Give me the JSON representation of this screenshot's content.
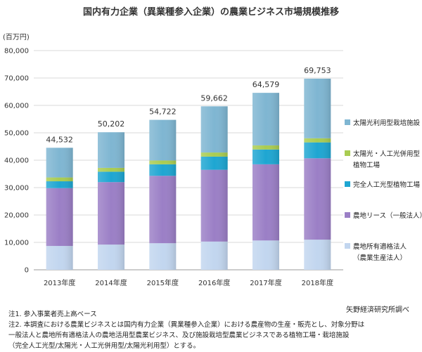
{
  "title": "国内有力企業（異業種参入企業）の農業ビジネス市場規模推移",
  "unit_label": "(百万円)",
  "source": "矢野経済研究所調べ",
  "notes": [
    "注1. 参入事業者売上高ベース",
    "注2. 本調査における農業ビジネスとは国内有力企業（異業種参入企業）における農産物の生産・販売とし、対象分野は",
    "一般法人と農地所有適格法人の農地活用型農業ビジネス、及び施設栽培型農業ビジネスである植物工場・栽培施設",
    "（完全人工光型/太陽光・人工光併用型/太陽光利用型）とする。"
  ],
  "colors": {
    "solar": "#7fb6d2",
    "hybrid": "#a9cc52",
    "artificial": "#1ea6d2",
    "lease": "#9b7fc6",
    "owned": "#c2d6ef"
  },
  "chart_data": {
    "type": "bar",
    "stacked": true,
    "categories": [
      "2013年度",
      "2014年度",
      "2015年度",
      "2016年度",
      "2017年度",
      "2018年度"
    ],
    "ylim": [
      0,
      80000
    ],
    "yticks": [
      0,
      10000,
      20000,
      30000,
      40000,
      50000,
      60000,
      70000,
      80000
    ],
    "ytick_labels": [
      "0",
      "10,000",
      "20,000",
      "30,000",
      "40,000",
      "50,000",
      "60,000",
      "70,000",
      "80,000"
    ],
    "totals": [
      44532,
      50202,
      54722,
      59662,
      64579,
      69753
    ],
    "total_labels": [
      "44,532",
      "50,202",
      "54,722",
      "59,662",
      "64,579",
      "69,753"
    ],
    "series": [
      {
        "name": "農地所有適格法人（農業生産法人）",
        "color_key": "owned",
        "values": [
          8700,
          9200,
          9700,
          10300,
          10700,
          11000
        ]
      },
      {
        "name": "農地リース（一般法人）",
        "color_key": "lease",
        "values": [
          21100,
          22800,
          24600,
          26200,
          27800,
          29700
        ]
      },
      {
        "name": "完全人工光型植物工場",
        "color_key": "artificial",
        "values": [
          2500,
          3800,
          4200,
          4800,
          5400,
          5800
        ]
      },
      {
        "name": "太陽光・人工光併用型植物工場",
        "color_key": "hybrid",
        "values": [
          1400,
          1400,
          1400,
          1500,
          1500,
          1500
        ]
      },
      {
        "name": "太陽光利用型栽培施設",
        "color_key": "solar",
        "values": [
          10832,
          13002,
          14822,
          16862,
          19179,
          21753
        ]
      }
    ],
    "legend": [
      {
        "lines": [
          "太陽光利用型栽培施設"
        ],
        "color_key": "solar"
      },
      {
        "lines": [
          "太陽光・人工光併用型",
          "植物工場"
        ],
        "color_key": "hybrid"
      },
      {
        "lines": [
          "完全人工光型植物工場"
        ],
        "color_key": "artificial"
      },
      {
        "lines": [
          "農地リース（一般法人）"
        ],
        "color_key": "lease"
      },
      {
        "lines": [
          "農地所有適格法人",
          "（農業生産法人）"
        ],
        "color_key": "owned"
      }
    ],
    "legend_position": "right",
    "grid": true
  }
}
